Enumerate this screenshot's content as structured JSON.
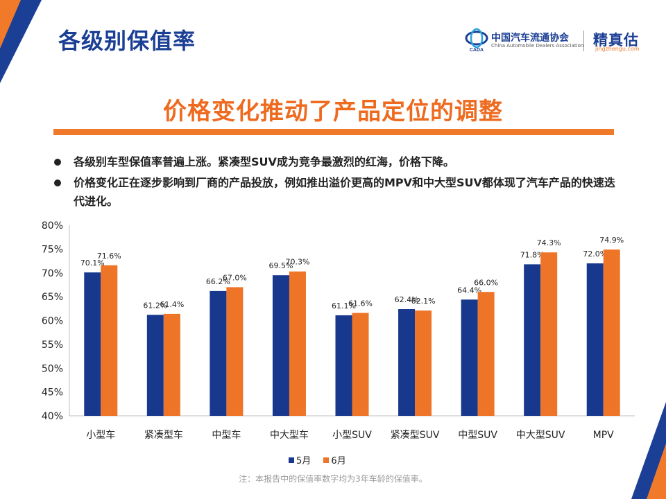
{
  "page": {
    "title": "各级别保值率",
    "headline": "价格变化推动了产品定位的调整",
    "bullets": [
      "各级别车型保值率普遍上涨。紧凑型SUV成为竞争最激烈的红海，价格下降。",
      "价格变化正在逐步影响到厂商的产品投放，例如推出溢价更高的MPV和中大型SUV都体现了汽车产品的快速迭代进化。"
    ],
    "footnote": "注：本报告中的保值率数字均为3年车龄的保值率。"
  },
  "logos": {
    "cada_name": "中国汽车流通协会",
    "cada_english": "China Automobile Dealers Association",
    "cada_abbr": "CADA",
    "brand_name": "精真估",
    "brand_url": "jingzhengu.com"
  },
  "colors": {
    "series_may": "#17388c",
    "series_june": "#ee7427",
    "title_blue": "#1b3f95",
    "accent_orange": "#f07a2a"
  },
  "chart_data": {
    "type": "bar",
    "categories": [
      "小型车",
      "紧凑型车",
      "中型车",
      "中大型车",
      "小型SUV",
      "紧凑型SUV",
      "中型SUV",
      "中大型SUV",
      "MPV"
    ],
    "series": [
      {
        "name": "5月",
        "values": [
          70.1,
          61.2,
          66.2,
          69.5,
          61.1,
          62.4,
          64.4,
          71.8,
          72.0
        ]
      },
      {
        "name": "6月",
        "values": [
          71.6,
          61.4,
          67.0,
          70.3,
          61.6,
          62.1,
          66.0,
          74.3,
          74.9
        ]
      }
    ],
    "ylim": [
      40,
      80
    ],
    "yticks": [
      40,
      45,
      50,
      55,
      60,
      65,
      70,
      75,
      80
    ],
    "unit": "%",
    "grid": false,
    "legend_position": "bottom"
  }
}
